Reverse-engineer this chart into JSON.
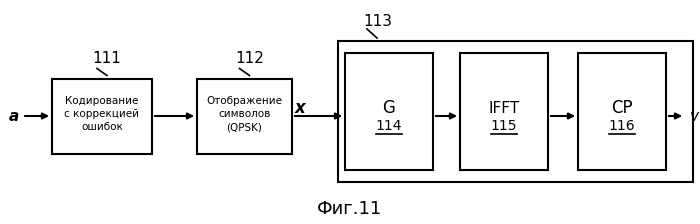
{
  "title": "Фиг.11",
  "background_color": "#ffffff",
  "label_a": "a",
  "label_v": "v",
  "label_x": "x",
  "box1_text": "Кодирование\nс коррекцией\nошибок",
  "box1_num": "111",
  "box2_text": "Отображение\nсимволов\n(QPSK)",
  "box2_num": "112",
  "box3_label": "G",
  "box3_num": "114",
  "box4_label": "IFFT",
  "box4_num": "115",
  "box5_label": "CP",
  "box5_num": "116",
  "big_box_num": "113",
  "text_color": "#000000"
}
